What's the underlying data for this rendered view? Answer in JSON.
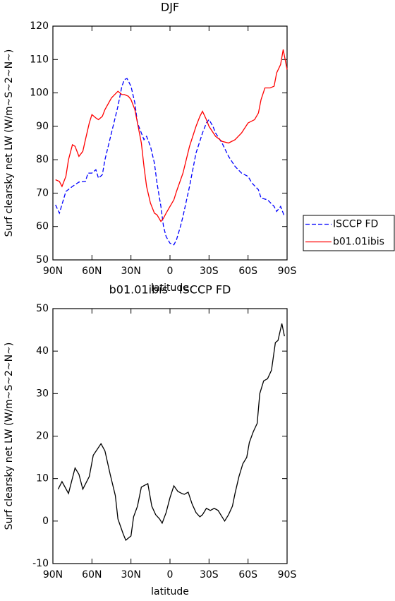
{
  "chart_data": [
    {
      "type": "line",
      "title": "DJF",
      "xlabel": "latitude",
      "ylabel": "Surf clearsky net LW (W/m~S~2~N~)",
      "xlim": [
        90,
        -90
      ],
      "xticks": [
        {
          "value": 90,
          "label": "90N"
        },
        {
          "value": 60,
          "label": "60N"
        },
        {
          "value": 30,
          "label": "30N"
        },
        0,
        {
          "value": -30,
          "label": "30S"
        },
        {
          "value": -60,
          "label": "60S"
        },
        {
          "value": -90,
          "label": "90S"
        }
      ],
      "ylim": [
        50,
        120
      ],
      "yticks": [
        50,
        60,
        70,
        80,
        90,
        100,
        110,
        120
      ],
      "legend": "right",
      "series": [
        {
          "name": "ISCCP FD",
          "color": "#0000ff",
          "line_style": "dashed",
          "x": [
            88,
            85,
            80,
            75,
            70,
            65,
            63,
            60,
            57,
            55,
            52,
            50,
            45,
            40,
            37,
            35,
            33,
            30,
            27,
            25,
            22,
            20,
            18,
            15,
            12,
            10,
            7,
            5,
            3,
            0,
            -3,
            -5,
            -8,
            -10,
            -15,
            -20,
            -25,
            -28,
            -30,
            -33,
            -35,
            -40,
            -45,
            -50,
            -55,
            -60,
            -63,
            -68,
            -70,
            -75,
            -80,
            -82,
            -85,
            -88
          ],
          "values": [
            66.5,
            64,
            70.5,
            72,
            73.3,
            73.5,
            76,
            76,
            77,
            74.5,
            75.5,
            80,
            88,
            96,
            102,
            104,
            104.3,
            102,
            97,
            91,
            88,
            86,
            87,
            84,
            79,
            73,
            66,
            60,
            57,
            55,
            54.5,
            56,
            60,
            63,
            72,
            82,
            88,
            91,
            92,
            90,
            88,
            85,
            81,
            78,
            76,
            75,
            73,
            71,
            68.5,
            68,
            66,
            64.5,
            66,
            63
          ]
        },
        {
          "name": "b01.01ibis",
          "color": "#ff0000",
          "line_style": "solid",
          "x": [
            88,
            85,
            83,
            80,
            78,
            75,
            73,
            70,
            67,
            65,
            62,
            60,
            57,
            55,
            52,
            50,
            45,
            40,
            37,
            35,
            32,
            30,
            27,
            25,
            22,
            20,
            18,
            15,
            12,
            10,
            7,
            5,
            3,
            0,
            -3,
            -5,
            -10,
            -15,
            -20,
            -23,
            -25,
            -28,
            -30,
            -35,
            -40,
            -45,
            -50,
            -55,
            -60,
            -65,
            -68,
            -70,
            -73,
            -77,
            -80,
            -82,
            -85,
            -87,
            -90
          ],
          "values": [
            74,
            73.5,
            72,
            75,
            80,
            84.5,
            84,
            81,
            82.5,
            86,
            91,
            93.5,
            92.5,
            92,
            93,
            95,
            98.5,
            100.5,
            99.5,
            99.5,
            99,
            98,
            95,
            91,
            85,
            78,
            72,
            67,
            64,
            63.5,
            61.5,
            62.5,
            64,
            66,
            68,
            70.5,
            76,
            84,
            90,
            93,
            94.5,
            92,
            90,
            87,
            85.5,
            85,
            86,
            88,
            91,
            92,
            94,
            98,
            101.5,
            101.5,
            102,
            106,
            108.5,
            113,
            107
          ]
        }
      ]
    },
    {
      "type": "line",
      "title": "b01.01ibis - ISCCP FD",
      "xlabel": "latitude",
      "ylabel": "Surf clearsky net LW (W/m~S~2~N~)",
      "xlim": [
        90,
        -90
      ],
      "xticks": [
        {
          "value": 90,
          "label": "90N"
        },
        {
          "value": 60,
          "label": "60N"
        },
        {
          "value": 30,
          "label": "30N"
        },
        0,
        {
          "value": -30,
          "label": "30S"
        },
        {
          "value": -60,
          "label": "60S"
        },
        {
          "value": -90,
          "label": "90S"
        }
      ],
      "ylim": [
        -10,
        50
      ],
      "yticks": [
        -10,
        0,
        10,
        20,
        30,
        40,
        50
      ],
      "series": [
        {
          "color": "#000000",
          "line_style": "solid",
          "x": [
            86,
            83,
            78,
            73,
            70,
            67,
            62,
            59,
            53,
            50,
            46,
            42,
            40,
            36,
            34,
            30,
            28,
            25,
            22,
            19,
            17,
            14,
            11,
            8,
            6,
            3,
            0,
            -3,
            -6,
            -9,
            -11,
            -14,
            -17,
            -20,
            -23,
            -25,
            -28,
            -31,
            -34,
            -37,
            -42,
            -45,
            -48,
            -50,
            -53,
            -56,
            -59,
            -61,
            -64,
            -67,
            -69,
            -72,
            -75,
            -78,
            -81,
            -83,
            -86,
            -88
          ],
          "values": [
            7.5,
            9.3,
            6.5,
            12.5,
            11,
            7.5,
            10.5,
            15.5,
            18.2,
            16.5,
            11,
            6,
            0.5,
            -3,
            -4.5,
            -3.5,
            1,
            3.5,
            8,
            8.5,
            8.8,
            3.5,
            1.5,
            0.5,
            -0.5,
            2,
            5.5,
            8.3,
            7,
            6.5,
            6.3,
            6.8,
            4,
            2,
            1,
            1.5,
            3,
            2.5,
            3,
            2.5,
            0,
            1.5,
            3.5,
            6.5,
            10.5,
            13.5,
            15,
            18.5,
            21,
            23,
            30,
            33,
            33.5,
            35.5,
            42,
            42.5,
            46.5,
            43.5
          ]
        }
      ]
    }
  ]
}
